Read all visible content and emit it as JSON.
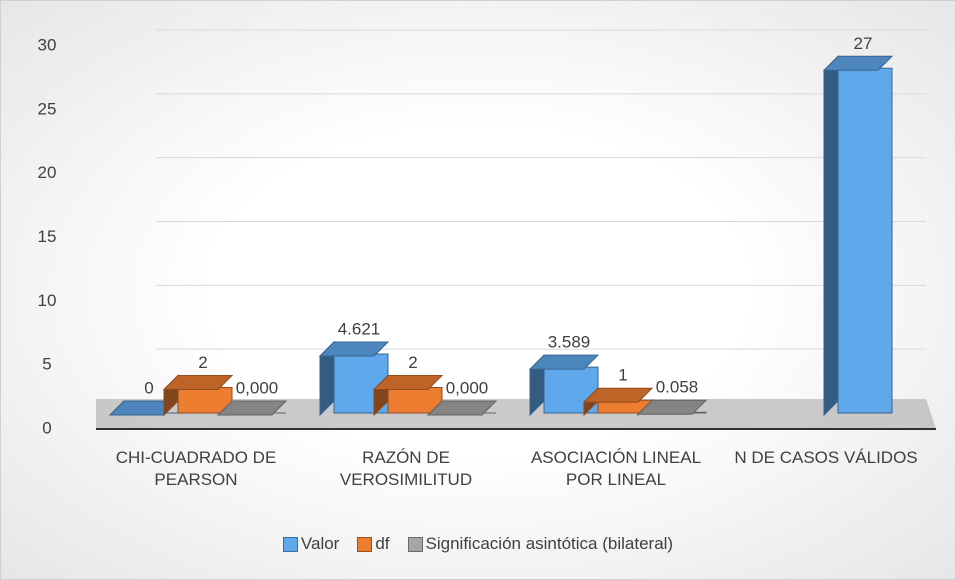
{
  "chart_data": {
    "type": "bar3d",
    "categories": [
      "CHI-CUADRADO DE PEARSON",
      "RAZÓN DE VEROSIMILITUD",
      "ASOCIACIÓN LINEAL POR LINEAL",
      "N DE CASOS VÁLIDOS"
    ],
    "series": [
      {
        "name": "Valor",
        "color": "#5fa8ec",
        "values": [
          0,
          4.621,
          3.589,
          27
        ]
      },
      {
        "name": "df",
        "color": "#ed7d31",
        "values": [
          2,
          2,
          1,
          null
        ]
      },
      {
        "name": "Significación asintótica (bilateral)",
        "color": "#a5a5a5",
        "values": [
          0.0,
          0.0,
          0.058,
          null
        ],
        "value_labels": [
          "0,000",
          "0,000",
          "0.058",
          null
        ]
      }
    ],
    "ylim": [
      0,
      30
    ],
    "yticks": [
      0,
      5,
      10,
      15,
      20,
      25,
      30
    ],
    "grid": true,
    "legend": "bottom"
  }
}
